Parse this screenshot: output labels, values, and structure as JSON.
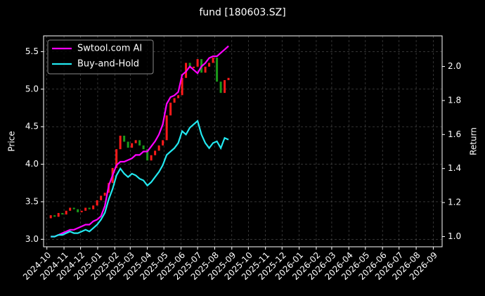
{
  "chart_data": {
    "type": "candlestick",
    "title": "fund [180603.SZ]",
    "y_label": "Price",
    "y2_label": "Return",
    "x": [
      "2024-10-08",
      "2024-10-15",
      "2024-10-22",
      "2024-10-29",
      "2024-11-05",
      "2024-11-12",
      "2024-11-19",
      "2024-11-26",
      "2024-12-03",
      "2024-12-10",
      "2024-12-17",
      "2024-12-24",
      "2024-12-31",
      "2025-01-07",
      "2025-01-14",
      "2025-01-21",
      "2025-01-28",
      "2025-02-04",
      "2025-02-11",
      "2025-02-18",
      "2025-02-25",
      "2025-03-04",
      "2025-03-11",
      "2025-03-18",
      "2025-03-25",
      "2025-04-01",
      "2025-04-08",
      "2025-04-15",
      "2025-04-22",
      "2025-04-29",
      "2025-05-06",
      "2025-05-13",
      "2025-05-20",
      "2025-05-27",
      "2025-06-03",
      "2025-06-10",
      "2025-06-17",
      "2025-06-24",
      "2025-07-01",
      "2025-07-08",
      "2025-07-15",
      "2025-07-22",
      "2025-07-29",
      "2025-08-05",
      "2025-08-12",
      "2025-08-19",
      "2025-08-26"
    ],
    "open": [
      3.28,
      3.32,
      3.3,
      3.35,
      3.33,
      3.38,
      3.42,
      3.4,
      3.36,
      3.38,
      3.42,
      3.4,
      3.45,
      3.52,
      3.58,
      3.62,
      3.75,
      3.95,
      4.2,
      4.38,
      4.3,
      4.22,
      4.28,
      4.32,
      4.25,
      4.2,
      4.05,
      4.12,
      4.18,
      4.25,
      4.32,
      4.65,
      4.82,
      4.88,
      4.92,
      5.15,
      5.35,
      5.28,
      5.3,
      5.4,
      5.22,
      5.3,
      5.35,
      5.42,
      5.1,
      4.95,
      5.12
    ],
    "close": [
      3.32,
      3.3,
      3.35,
      3.33,
      3.38,
      3.42,
      3.4,
      3.36,
      3.38,
      3.42,
      3.4,
      3.45,
      3.52,
      3.58,
      3.62,
      3.75,
      3.95,
      4.2,
      4.38,
      4.3,
      4.22,
      4.28,
      4.32,
      4.25,
      4.2,
      4.05,
      4.12,
      4.18,
      4.25,
      4.32,
      4.65,
      4.82,
      4.88,
      4.92,
      5.15,
      5.35,
      5.28,
      5.3,
      5.4,
      5.22,
      5.3,
      5.35,
      5.42,
      5.1,
      4.95,
      5.12,
      5.15
    ],
    "up_color": "#ff1a1a",
    "down_color": "#1a9a1a",
    "series": [
      {
        "name": "Swtool.com AI",
        "color": "#ff00ff",
        "axis": "y2",
        "values": [
          1.0,
          1.0,
          1.01,
          1.02,
          1.03,
          1.04,
          1.04,
          1.05,
          1.06,
          1.07,
          1.07,
          1.09,
          1.1,
          1.12,
          1.18,
          1.3,
          1.36,
          1.42,
          1.44,
          1.44,
          1.45,
          1.46,
          1.48,
          1.48,
          1.5,
          1.5,
          1.53,
          1.56,
          1.6,
          1.66,
          1.78,
          1.82,
          1.83,
          1.85,
          1.95,
          1.97,
          2.0,
          1.98,
          1.96,
          2.0,
          2.02,
          2.05,
          2.06,
          2.06,
          2.08,
          2.1,
          2.12
        ]
      },
      {
        "name": "Buy-and-Hold",
        "color": "#22e8f0",
        "axis": "y2",
        "values": [
          1.0,
          1.0,
          1.01,
          1.01,
          1.02,
          1.03,
          1.02,
          1.02,
          1.03,
          1.04,
          1.03,
          1.05,
          1.07,
          1.1,
          1.14,
          1.22,
          1.28,
          1.36,
          1.4,
          1.37,
          1.35,
          1.37,
          1.36,
          1.34,
          1.33,
          1.3,
          1.32,
          1.35,
          1.38,
          1.42,
          1.48,
          1.5,
          1.52,
          1.55,
          1.62,
          1.6,
          1.64,
          1.66,
          1.68,
          1.6,
          1.55,
          1.52,
          1.55,
          1.56,
          1.52,
          1.58,
          1.57
        ]
      }
    ],
    "xlim": [
      "2024-09-25",
      "2026-09-17"
    ],
    "xticks": [
      "2024-10",
      "2024-11",
      "2024-12",
      "2025-01",
      "2025-02",
      "2025-03",
      "2025-04",
      "2025-05",
      "2025-06",
      "2025-07",
      "2025-08",
      "2025-09",
      "2025-10",
      "2025-11",
      "2025-12",
      "2026-01",
      "2026-02",
      "2026-03",
      "2026-04",
      "2026-05",
      "2026-06",
      "2026-07",
      "2026-08",
      "2026-09"
    ],
    "ylim": [
      2.9,
      5.71
    ],
    "yticks": [
      {
        "value": 3,
        "label": "3.0"
      },
      3.5,
      {
        "value": 4,
        "label": "4.0"
      },
      4.5,
      {
        "value": 5,
        "label": "5.0"
      },
      5.5
    ],
    "y2lim": [
      0.94,
      2.18
    ],
    "y2ticks": [
      {
        "value": 1,
        "label": "1.0"
      },
      1.2,
      1.4,
      1.6,
      1.8,
      {
        "value": 2,
        "label": "2.0"
      }
    ],
    "grid": true,
    "legend": "upper-left"
  }
}
